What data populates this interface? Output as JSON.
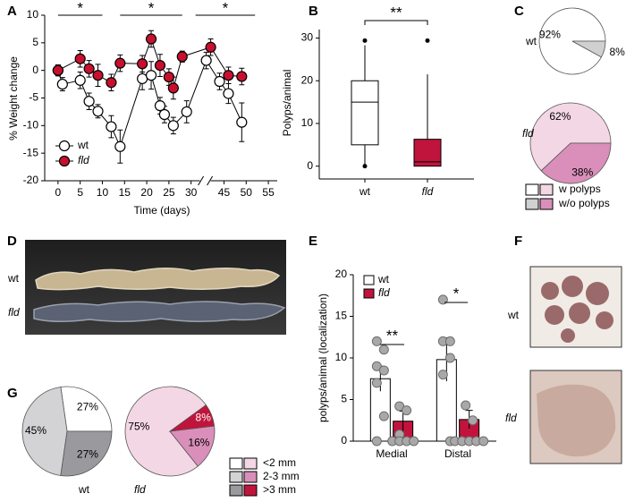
{
  "chart_data": [
    {
      "panel": "A",
      "type": "line",
      "y_label": "% Weight change",
      "x_label": "Time (days)",
      "xlim": [
        -3,
        57
      ],
      "xbreak": [
        32,
        42
      ],
      "xticks": [
        0,
        5,
        10,
        15,
        20,
        25,
        30,
        45,
        50,
        55
      ],
      "ylim": [
        -20,
        10
      ],
      "yticks": [
        -20,
        -15,
        -10,
        -5,
        0,
        5,
        10
      ],
      "annotations": [
        "*",
        "*",
        "*"
      ],
      "legend": "lower left",
      "series": [
        {
          "name": "wt",
          "color": "#ffffff",
          "x": [
            0,
            1,
            5,
            7,
            9,
            12,
            14,
            19,
            21,
            23,
            24,
            26,
            29,
            41,
            44,
            46,
            49
          ],
          "values": [
            0,
            -2.5,
            -1.8,
            -5.6,
            -7.4,
            -10.2,
            -13.8,
            -1.5,
            -0.9,
            -6.4,
            -8,
            -10,
            -7.5,
            1.8,
            -2,
            -4.2,
            -9.4
          ],
          "errors": [
            1,
            1.2,
            1.5,
            1.5,
            1.2,
            2,
            3,
            2,
            2.5,
            1.5,
            1.5,
            1.5,
            2,
            1.5,
            1.5,
            1.8,
            3.5
          ]
        },
        {
          "name": "fld",
          "color": "#c8102e",
          "x": [
            0,
            5,
            7,
            9,
            12,
            14,
            19,
            21,
            23,
            25,
            26,
            28,
            42,
            46,
            49
          ],
          "values": [
            0,
            2.1,
            0.3,
            -0.9,
            -2.2,
            1.3,
            1.2,
            5.7,
            0.9,
            -1.2,
            -3.2,
            2.5,
            4.2,
            -0.9,
            -1.1
          ],
          "errors": [
            0.8,
            1.5,
            1.5,
            2,
            1.5,
            1.5,
            1.5,
            1.5,
            2,
            1.5,
            2,
            1,
            1.5,
            1.5,
            1.5
          ]
        }
      ]
    },
    {
      "panel": "B",
      "type": "box",
      "y_label": "Polyps/animal",
      "categories": [
        "wt",
        "fld"
      ],
      "ylim": [
        -3,
        32
      ],
      "yticks": [
        0,
        10,
        20,
        30
      ],
      "annotations": [
        "**"
      ],
      "boxes": [
        {
          "color": "#ffffff",
          "min": 0,
          "q1": 5,
          "median": 15,
          "q3": 20,
          "max": 28.3,
          "outliers": [
            29.4,
            0
          ]
        },
        {
          "color": "#c0143c",
          "min": 0,
          "q1": 0,
          "median": 1,
          "q3": 6.3,
          "max": 21.5,
          "outliers": [
            29.4
          ]
        }
      ]
    },
    {
      "panel": "C",
      "type": "pie",
      "legend": [
        "w polyps",
        "w/o polyps"
      ],
      "pies": [
        {
          "name": "wt",
          "values": [
            92,
            8
          ],
          "value_labels": [
            "92%",
            "8%"
          ],
          "colors": [
            "#ffffff",
            "#d0d0d0"
          ]
        },
        {
          "name": "fld",
          "values": [
            62,
            38
          ],
          "value_labels": [
            "62%",
            "38%"
          ],
          "colors": [
            "#f4d7e5",
            "#d98fba"
          ]
        }
      ]
    },
    {
      "panel": "E",
      "type": "bar",
      "y_label": "polyps/animal (localization)",
      "categories": [
        "Medial",
        "Distal"
      ],
      "ylim": [
        0,
        20
      ],
      "yticks": [
        0,
        5,
        10,
        15,
        20
      ],
      "annotations": [
        "**",
        "*"
      ],
      "legend": "upper left",
      "series": [
        {
          "name": "wt",
          "color": "#ffffff",
          "values": [
            7.5,
            9.8
          ],
          "errors": [
            1.5,
            2.6
          ],
          "points": [
            [
              12,
              11,
              9,
              8.5,
              7,
              3,
              0
            ],
            [
              17,
              12,
              12,
              10,
              8,
              0
            ]
          ]
        },
        {
          "name": "fld",
          "color": "#c0143c",
          "values": [
            2.4,
            2.6
          ],
          "errors": [
            1.2,
            1.1
          ],
          "points": [
            [
              4.2,
              3.7,
              0.8,
              0,
              0,
              0,
              0
            ],
            [
              4.3,
              2.5,
              0,
              0,
              0,
              0,
              0
            ]
          ]
        }
      ]
    },
    {
      "panel": "G",
      "type": "pie",
      "legend": [
        "<2 mm",
        "2-3 mm",
        ">3 mm"
      ],
      "pies": [
        {
          "name": "wt",
          "values": [
            27,
            45,
            27
          ],
          "value_labels": [
            "27%",
            "45%",
            "27%"
          ],
          "colors": [
            "#ffffff",
            "#d3d3d6",
            "#9a9a9e"
          ]
        },
        {
          "name": "fld",
          "values": [
            75,
            16,
            8
          ],
          "value_labels": [
            "75%",
            "16%",
            "8%"
          ],
          "colors": [
            "#f4d7e5",
            "#d98fba",
            "#c0143c"
          ]
        }
      ]
    }
  ],
  "photos": [
    {
      "panel": "D",
      "labels": [
        "wt",
        "fld"
      ]
    },
    {
      "panel": "F",
      "labels": [
        "wt",
        "fld"
      ]
    }
  ]
}
